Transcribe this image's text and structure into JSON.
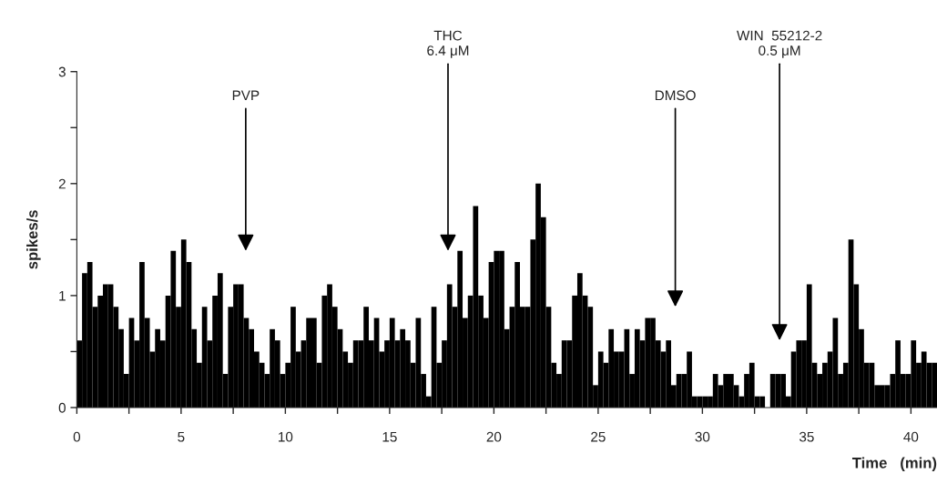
{
  "chart_data": {
    "type": "histogram",
    "xlabel": "Time   (min)",
    "ylabel": "spikes/s",
    "bins": [
      0,
      0.25,
      0.5,
      0.75,
      1,
      1.25,
      1.5,
      1.75,
      2,
      2.25,
      2.5,
      2.75,
      3,
      3.25,
      3.5,
      3.75,
      4,
      4.25,
      4.5,
      4.75,
      5,
      5.25,
      5.5,
      5.75,
      6,
      6.25,
      6.5,
      6.75,
      7,
      7.25,
      7.5,
      7.75,
      8,
      8.25,
      8.5,
      8.75,
      9,
      9.25,
      9.5,
      9.75,
      10,
      10.25,
      10.5,
      10.75,
      11,
      11.25,
      11.5,
      11.75,
      12,
      12.25,
      12.5,
      12.75,
      13,
      13.25,
      13.5,
      13.75,
      14,
      14.25,
      14.5,
      14.75,
      15,
      15.25,
      15.5,
      15.75,
      16,
      16.25,
      16.5,
      16.75,
      17,
      17.25,
      17.5,
      17.75,
      18,
      18.25,
      18.5,
      18.75,
      19,
      19.25,
      19.5,
      19.75,
      20,
      20.25,
      20.5,
      20.75,
      21,
      21.25,
      21.5,
      21.75,
      22,
      22.25,
      22.5,
      22.75,
      23,
      23.25,
      23.5,
      23.75,
      24,
      24.25,
      24.5,
      24.75,
      25,
      25.25,
      25.5,
      25.75,
      26,
      26.25,
      26.5,
      26.75,
      27,
      27.25,
      27.5,
      27.75,
      28,
      28.25,
      28.5,
      28.75,
      29,
      29.25,
      29.5,
      29.75,
      30,
      30.25,
      30.5,
      30.75,
      31,
      31.25,
      31.5,
      31.75,
      32,
      32.25,
      32.5,
      32.75,
      33,
      33.25,
      33.5,
      33.75,
      34,
      34.25,
      34.5,
      34.75,
      35,
      35.25,
      35.5,
      35.75,
      36,
      36.25,
      36.5,
      36.75,
      37,
      37.25,
      37.5,
      37.75,
      38,
      38.25,
      38.5,
      38.75,
      39,
      39.25,
      39.5,
      39.75,
      40,
      40.25,
      40.5,
      40.75,
      41,
      41.25
    ],
    "values": [
      0.6,
      1.2,
      1.3,
      0.9,
      1.0,
      1.1,
      1.1,
      0.9,
      0.7,
      0.3,
      0.8,
      0.6,
      1.3,
      0.8,
      0.5,
      0.7,
      0.6,
      1.0,
      1.4,
      0.9,
      1.5,
      1.3,
      0.7,
      0.4,
      0.9,
      0.6,
      1.0,
      1.2,
      0.3,
      0.9,
      1.1,
      1.1,
      0.8,
      0.7,
      0.5,
      0.4,
      0.3,
      0.7,
      0.6,
      0.3,
      0.4,
      0.9,
      0.5,
      0.6,
      0.8,
      0.8,
      0.4,
      1.0,
      1.1,
      0.9,
      0.7,
      0.5,
      0.4,
      0.6,
      0.6,
      0.9,
      0.6,
      0.8,
      0.5,
      0.6,
      0.8,
      0.6,
      0.7,
      0.6,
      0.4,
      0.8,
      0.3,
      0.1,
      0.9,
      0.4,
      0.6,
      1.1,
      0.9,
      1.4,
      0.8,
      1.0,
      1.8,
      1.0,
      0.8,
      1.3,
      1.4,
      1.4,
      0.7,
      0.9,
      1.3,
      0.9,
      0.9,
      1.5,
      2.0,
      1.7,
      0.9,
      0.4,
      0.3,
      0.6,
      0.6,
      1.0,
      1.2,
      1.0,
      0.9,
      0.2,
      0.5,
      0.4,
      0.7,
      0.5,
      0.5,
      0.7,
      0.3,
      0.7,
      0.6,
      0.8,
      0.8,
      0.6,
      0.5,
      0.6,
      0.2,
      0.3,
      0.3,
      0.5,
      0.1,
      0.1,
      0.1,
      0.1,
      0.3,
      0.2,
      0.3,
      0.3,
      0.2,
      0.1,
      0.3,
      0.4,
      0.1,
      0.1,
      0.0,
      0.3,
      0.3,
      0.3,
      0.1,
      0.5,
      0.6,
      0.6,
      1.1,
      0.4,
      0.3,
      0.4,
      0.5,
      0.8,
      0.3,
      0.4,
      1.5,
      1.1,
      0.7,
      0.4,
      0.4,
      0.2,
      0.2,
      0.2,
      0.3,
      0.6,
      0.3,
      0.3,
      0.6,
      0.4,
      0.5,
      0.4,
      0.4
    ],
    "color": "#000000",
    "xlim": [
      0,
      41.25
    ],
    "xticks": [
      0,
      {
        "value": 2.5,
        "label": null
      },
      5,
      {
        "value": 7.5,
        "label": null
      },
      10,
      {
        "value": 12.5,
        "label": null
      },
      15,
      {
        "value": 17.5,
        "label": null
      },
      20,
      {
        "value": 22.5,
        "label": null
      },
      25,
      {
        "value": 27.5,
        "label": null
      },
      30,
      {
        "value": 32.5,
        "label": null
      },
      35,
      {
        "value": 37.5,
        "label": null
      },
      40
    ],
    "ylim": [
      0,
      3
    ],
    "yticks": [
      0,
      {
        "value": 0.5,
        "label": null
      },
      1,
      {
        "value": 1.5,
        "label": null
      },
      2,
      {
        "value": 2.5,
        "label": null
      },
      3
    ],
    "grid": false,
    "annotations": [
      {
        "text": "PVP",
        "x": 8.1
      },
      {
        "text": "THC\n6.4 μM",
        "x": 17.8
      },
      {
        "text": "DMSO",
        "x": 28.7
      },
      {
        "text": "WIN  55212-2\n0.5 μM",
        "x": 33.7
      }
    ]
  }
}
